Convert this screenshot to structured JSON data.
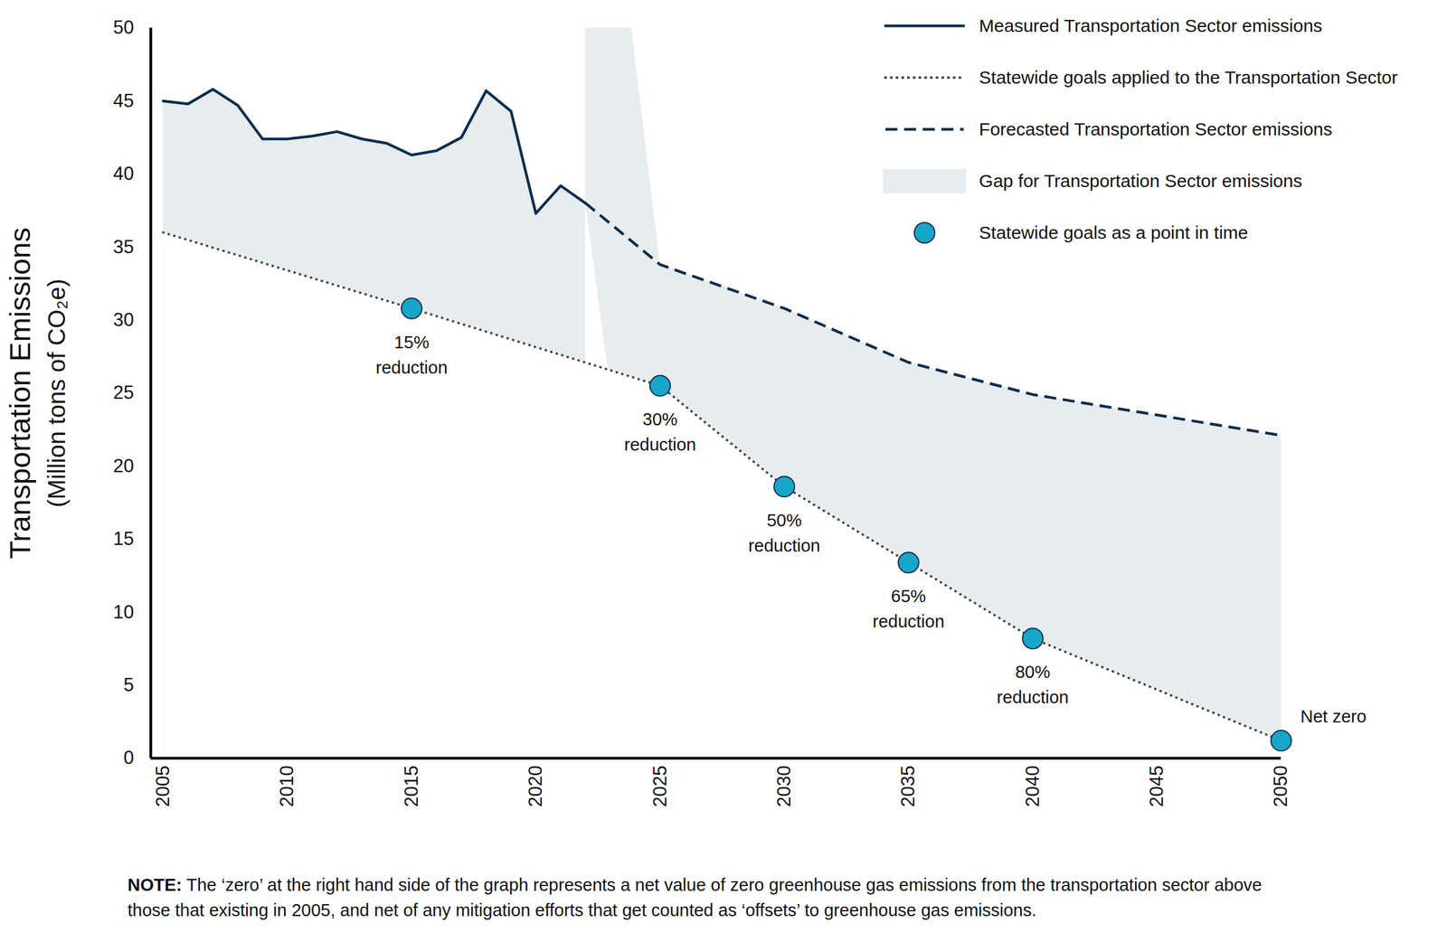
{
  "chart_data": {
    "type": "line",
    "y_label": "Transportation Emissions",
    "y_label_units": "(Million tons of CO₂e)",
    "xlim": [
      2004.5,
      2050
    ],
    "xticks": [
      2005,
      2010,
      2015,
      2020,
      2025,
      2030,
      2035,
      2040,
      2045,
      2050
    ],
    "ylim": [
      0,
      50
    ],
    "yticks": [
      0,
      5,
      10,
      15,
      20,
      25,
      30,
      35,
      40,
      45,
      50
    ],
    "grid": false,
    "legend": "top-right",
    "series": [
      {
        "name": "Measured Transportation Sector emissions",
        "type": "line",
        "line_style": "solid",
        "color": "#0b2d4f",
        "x": [
          2005,
          2006,
          2007,
          2008,
          2009,
          2010,
          2011,
          2012,
          2013,
          2014,
          2015,
          2016,
          2017,
          2018,
          2019,
          2020,
          2021,
          2022
        ],
        "values": [
          45.0,
          44.8,
          45.8,
          44.7,
          42.4,
          42.4,
          42.6,
          42.9,
          42.4,
          42.1,
          41.3,
          41.6,
          42.5,
          45.7,
          44.3,
          37.3,
          39.2,
          38.0
        ]
      },
      {
        "name": "Statewide goals applied to the Transportation Sector",
        "type": "line",
        "line_style": "dotted",
        "color": "#4a4a4a",
        "x": [
          2005,
          2015,
          2025,
          2030,
          2035,
          2040,
          2050
        ],
        "values": [
          36.0,
          30.8,
          25.5,
          18.6,
          13.4,
          8.2,
          1.2
        ]
      },
      {
        "name": "Forecasted Transportation Sector emissions",
        "type": "line",
        "line_style": "dashed",
        "color": "#0b2d4f",
        "x": [
          2022,
          2025,
          2030,
          2035,
          2040,
          2050
        ],
        "values": [
          38.0,
          33.8,
          30.8,
          27.1,
          24.9,
          22.1
        ]
      },
      {
        "name": "Gap for Transportation Sector emissions",
        "type": "area",
        "color": "#e7ecef"
      },
      {
        "name": "Statewide goals as a point in time",
        "type": "scatter",
        "marker": "circle",
        "color": "#17a6c9",
        "x": [
          2015,
          2025,
          2030,
          2035,
          2040,
          2050
        ],
        "values": [
          30.8,
          25.5,
          18.6,
          13.4,
          8.2,
          1.2
        ],
        "labels": [
          "15%\nreduction",
          "30%\nreduction",
          "50%\nreduction",
          "65%\nreduction",
          "80%\nreduction",
          "Net zero"
        ]
      }
    ],
    "note": {
      "label": "NOTE:",
      "text": "The ‘zero’ at the right hand side of the graph represents a net value of zero greenhouse gas emissions from the transportation sector above those that existing in 2005, and net of any mitigation efforts that get counted as ‘offsets’ to greenhouse gas emissions."
    }
  }
}
